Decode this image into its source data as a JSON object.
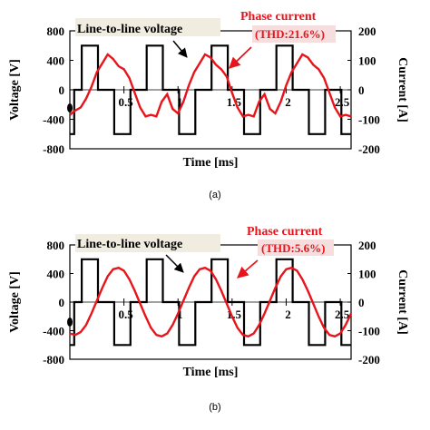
{
  "colors": {
    "voltage": "#000000",
    "current": "#e8141b",
    "annotation_bg": "#f0ece0",
    "phase_bg": "#f7dede"
  },
  "chart_data": [
    {
      "type": "line",
      "caption": "(a)",
      "xlabel": "Time [ms]",
      "ylabel": "Voltage [V]",
      "y2label": "Current [A]",
      "xlim": [
        0,
        2.6
      ],
      "ylim": [
        -800,
        800
      ],
      "y2lim": [
        -200,
        200
      ],
      "xticks": [
        "0.5",
        "1",
        "1.5",
        "2",
        "2.5"
      ],
      "xtick_values": [
        0.5,
        1,
        1.5,
        2,
        2.5
      ],
      "yticks": [
        "800",
        "400",
        "0",
        "-400",
        "-800"
      ],
      "ytick_values": [
        800,
        400,
        0,
        -400,
        -800
      ],
      "y2ticks": [
        "200",
        "100",
        "0",
        "-100",
        "-200"
      ],
      "y2tick_values": [
        200,
        100,
        0,
        -100,
        -200
      ],
      "annotations": {
        "voltage_label": "Line-to-line voltage",
        "current_label": "Phase current",
        "thd": "(THD:21.6%)"
      },
      "series": [
        {
          "name": "Line-to-line voltage",
          "axis": "left",
          "step": true,
          "x": [
            0,
            0.04,
            0.04,
            0.11,
            0.11,
            0.26,
            0.26,
            0.41,
            0.41,
            0.56,
            0.56,
            0.71,
            0.71,
            0.86,
            0.86,
            1.01,
            1.01,
            1.16,
            1.16,
            1.31,
            1.31,
            1.46,
            1.46,
            1.61,
            1.61,
            1.76,
            1.76,
            1.91,
            1.91,
            2.06,
            2.06,
            2.21,
            2.21,
            2.36,
            2.36,
            2.51,
            2.51,
            2.6
          ],
          "y": [
            -600,
            -600,
            0,
            0,
            600,
            600,
            0,
            0,
            -600,
            -600,
            0,
            0,
            600,
            600,
            0,
            0,
            -600,
            -600,
            0,
            0,
            600,
            600,
            0,
            0,
            -600,
            -600,
            0,
            0,
            600,
            600,
            0,
            0,
            -600,
            -600,
            0,
            0,
            -600,
            -600
          ]
        },
        {
          "name": "Phase current",
          "axis": "right",
          "x": [
            0,
            0.05,
            0.1,
            0.15,
            0.2,
            0.25,
            0.3,
            0.35,
            0.4,
            0.45,
            0.5,
            0.55,
            0.6,
            0.65,
            0.7,
            0.75,
            0.8,
            0.85,
            0.9,
            0.95,
            1.0,
            1.05,
            1.1,
            1.15,
            1.2,
            1.25,
            1.3,
            1.35,
            1.4,
            1.45,
            1.5,
            1.55,
            1.6,
            1.65,
            1.7,
            1.75,
            1.8,
            1.85,
            1.9,
            1.95,
            2.0,
            2.05,
            2.1,
            2.15,
            2.2,
            2.25,
            2.3,
            2.35,
            2.4,
            2.45,
            2.5,
            2.55,
            2.6
          ],
          "y": [
            -85,
            -70,
            -60,
            -30,
            10,
            60,
            90,
            120,
            105,
            80,
            70,
            40,
            -10,
            -60,
            -90,
            -85,
            -90,
            -40,
            -15,
            -65,
            -80,
            -40,
            15,
            60,
            90,
            120,
            110,
            85,
            70,
            45,
            -10,
            -60,
            -90,
            -85,
            -90,
            -40,
            -15,
            -65,
            -80,
            -40,
            15,
            60,
            90,
            120,
            110,
            85,
            70,
            40,
            -10,
            -60,
            -90,
            -85,
            -90
          ]
        }
      ]
    },
    {
      "type": "line",
      "caption": "(b)",
      "xlabel": "Time [ms]",
      "ylabel": "Voltage [V]",
      "y2label": "Current [A]",
      "xlim": [
        0,
        2.6
      ],
      "ylim": [
        -800,
        800
      ],
      "y2lim": [
        -200,
        200
      ],
      "xticks": [
        "0.5",
        "1",
        "1.5",
        "2",
        "2.5"
      ],
      "xtick_values": [
        0.5,
        1,
        1.5,
        2,
        2.5
      ],
      "yticks": [
        "800",
        "400",
        "0",
        "-400",
        "-800"
      ],
      "ytick_values": [
        800,
        400,
        0,
        -400,
        -800
      ],
      "y2ticks": [
        "200",
        "100",
        "0",
        "-100",
        "-200"
      ],
      "y2tick_values": [
        200,
        100,
        0,
        -100,
        -200
      ],
      "annotations": {
        "voltage_label": "Line-to-line voltage",
        "current_label": "Phase current",
        "thd": "(THD:5.6%)"
      },
      "series": [
        {
          "name": "Line-to-line voltage",
          "axis": "left",
          "step": true,
          "x": [
            0,
            0.04,
            0.04,
            0.11,
            0.11,
            0.26,
            0.26,
            0.41,
            0.41,
            0.56,
            0.56,
            0.71,
            0.71,
            0.86,
            0.86,
            1.01,
            1.01,
            1.16,
            1.16,
            1.31,
            1.31,
            1.46,
            1.46,
            1.61,
            1.61,
            1.76,
            1.76,
            1.91,
            1.91,
            2.06,
            2.06,
            2.21,
            2.21,
            2.36,
            2.36,
            2.51,
            2.51,
            2.6
          ],
          "y": [
            -600,
            -600,
            0,
            0,
            600,
            600,
            0,
            0,
            -600,
            -600,
            0,
            0,
            600,
            600,
            0,
            0,
            -600,
            -600,
            0,
            0,
            600,
            600,
            0,
            0,
            -600,
            -600,
            0,
            0,
            600,
            600,
            0,
            0,
            -600,
            -600,
            0,
            0,
            -600,
            -600
          ]
        },
        {
          "name": "Phase current",
          "axis": "right",
          "x": [
            0,
            0.05,
            0.1,
            0.15,
            0.2,
            0.25,
            0.3,
            0.35,
            0.4,
            0.45,
            0.5,
            0.55,
            0.6,
            0.65,
            0.7,
            0.75,
            0.8,
            0.85,
            0.9,
            0.95,
            1.0,
            1.05,
            1.1,
            1.15,
            1.2,
            1.25,
            1.3,
            1.35,
            1.4,
            1.45,
            1.5,
            1.55,
            1.6,
            1.65,
            1.7,
            1.75,
            1.8,
            1.85,
            1.9,
            1.95,
            2.0,
            2.05,
            2.1,
            2.15,
            2.2,
            2.25,
            2.3,
            2.35,
            2.4,
            2.45,
            2.5,
            2.55,
            2.6
          ],
          "y": [
            -110,
            -115,
            -105,
            -80,
            -40,
            5,
            50,
            90,
            115,
            120,
            110,
            80,
            40,
            -5,
            -50,
            -90,
            -115,
            -120,
            -110,
            -80,
            -40,
            5,
            50,
            90,
            115,
            120,
            110,
            80,
            40,
            -5,
            -50,
            -90,
            -115,
            -120,
            -110,
            -80,
            -40,
            5,
            50,
            90,
            115,
            120,
            110,
            80,
            40,
            -5,
            -50,
            -90,
            -115,
            -120,
            -110,
            -80,
            -40
          ]
        }
      ]
    }
  ]
}
